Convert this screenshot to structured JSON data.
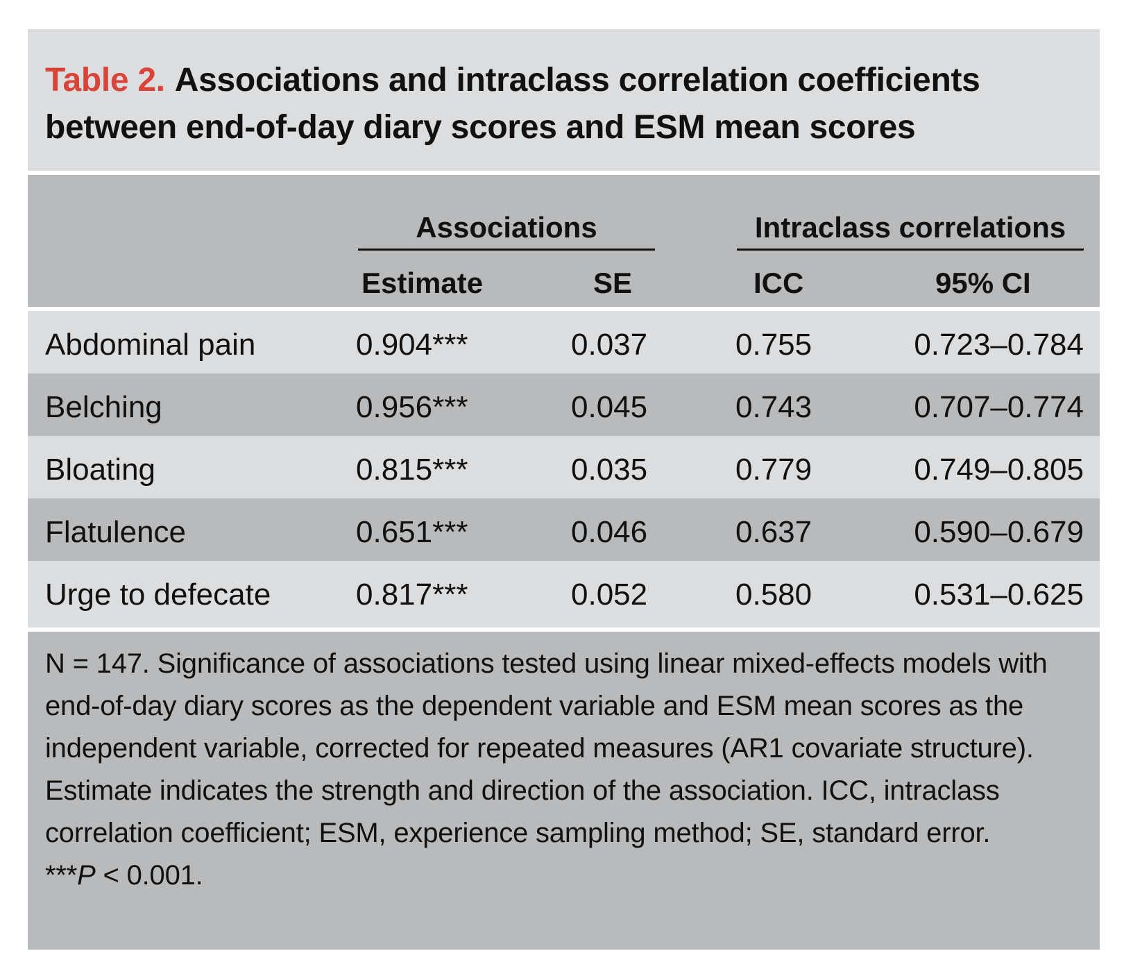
{
  "title": {
    "label": "Table 2.",
    "text": "Associations and intraclass correlation coefficients between end-of-day diary scores and ESM mean scores"
  },
  "header": {
    "associations": "Associations",
    "intraclass": "Intraclass correlations",
    "estimate": "Estimate",
    "se": "SE",
    "icc": "ICC",
    "ci": "95% CI"
  },
  "rows": [
    {
      "name": "Abdominal pain",
      "estimate": "0.904***",
      "se": "0.037",
      "icc": "0.755",
      "ci": "0.723–0.784"
    },
    {
      "name": "Belching",
      "estimate": "0.956***",
      "se": "0.045",
      "icc": "0.743",
      "ci": "0.707–0.774"
    },
    {
      "name": "Bloating",
      "estimate": "0.815***",
      "se": "0.035",
      "icc": "0.779",
      "ci": "0.749–0.805"
    },
    {
      "name": "Flatulence",
      "estimate": "0.651***",
      "se": "0.046",
      "icc": "0.637",
      "ci": "0.590–0.679"
    },
    {
      "name": "Urge to defecate",
      "estimate": "0.817***",
      "se": "0.052",
      "icc": "0.580",
      "ci": "0.531–0.625"
    }
  ],
  "notes": {
    "main": "N = 147. Significance of associations tested using linear mixed-effects models with end-of-day diary scores as the dependent variable and ESM mean scores as the independent variable, corrected for repeated measures (AR1 covariate structure). Estimate indicates the strength and direction of the association. ICC, intraclass correlation coefficient; ESM, experience sampling method; SE, standard error.",
    "sig_stars": "***",
    "sig_p": "P",
    "sig_rest": " < 0.001."
  },
  "colors": {
    "label_red": "#d9443a",
    "light_band": "#dcddde",
    "dark_band": "#b9babb"
  }
}
